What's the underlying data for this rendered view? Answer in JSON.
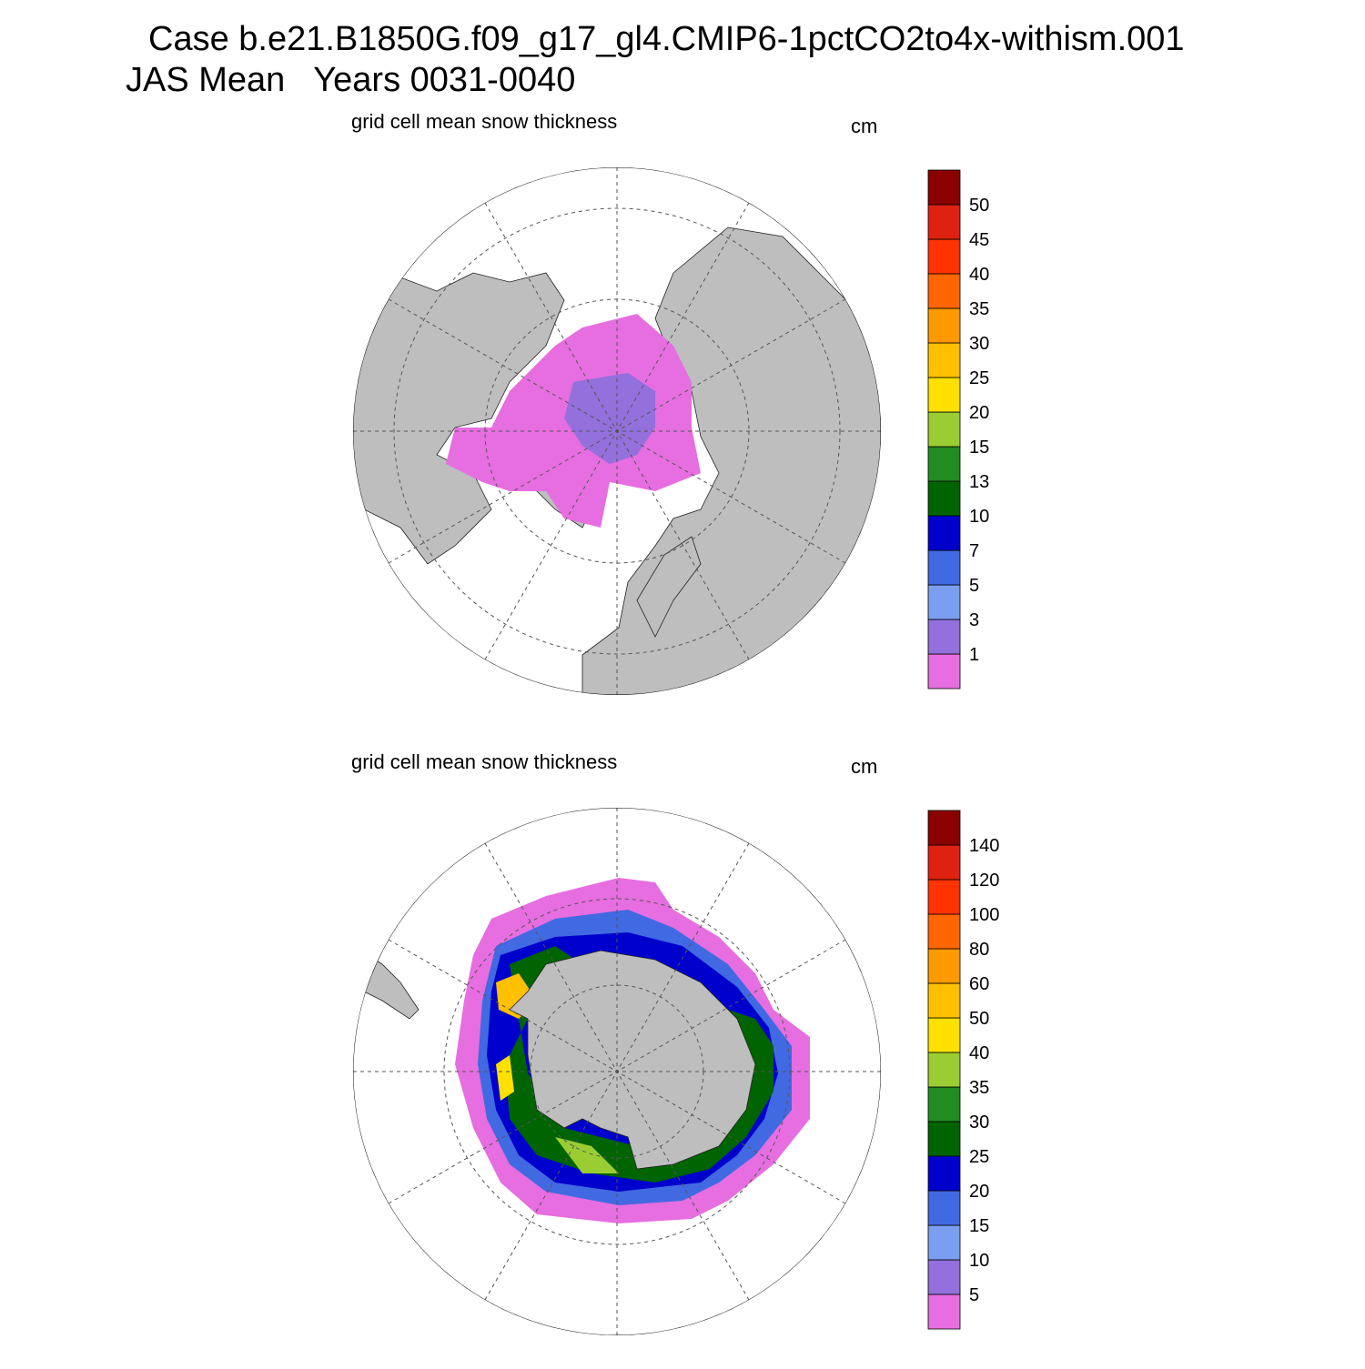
{
  "header": {
    "title": "Case b.e21.B1850G.f09_g17_gl4.CMIP6-1pctCO2to4x-withism.001",
    "subtitle": "JAS Mean   Years 0031-0040"
  },
  "panels": [
    {
      "title": "grid cell mean snow thickness",
      "units": "cm",
      "levels": [
        1,
        3,
        5,
        7,
        10,
        13,
        15,
        20,
        25,
        30,
        35,
        40,
        45,
        50
      ],
      "colors": [
        "#e66ee0",
        "#9370db",
        "#7a9ef0",
        "#4169e1",
        "#0000cd",
        "#006400",
        "#228b22",
        "#9acd32",
        "#ffe000",
        "#ffc000",
        "#ff9900",
        "#ff6600",
        "#ff3300",
        "#dd2211",
        "#8b0000"
      ]
    },
    {
      "title": "grid cell mean snow thickness",
      "units": "cm",
      "levels": [
        5,
        10,
        15,
        20,
        25,
        30,
        35,
        40,
        50,
        60,
        80,
        100,
        120,
        140
      ],
      "colors": [
        "#e66ee0",
        "#9370db",
        "#7a9ef0",
        "#4169e1",
        "#0000cd",
        "#006400",
        "#228b22",
        "#9acd32",
        "#ffe000",
        "#ffc000",
        "#ff9900",
        "#ff6600",
        "#ff3300",
        "#dd2211",
        "#8b0000"
      ]
    }
  ]
}
